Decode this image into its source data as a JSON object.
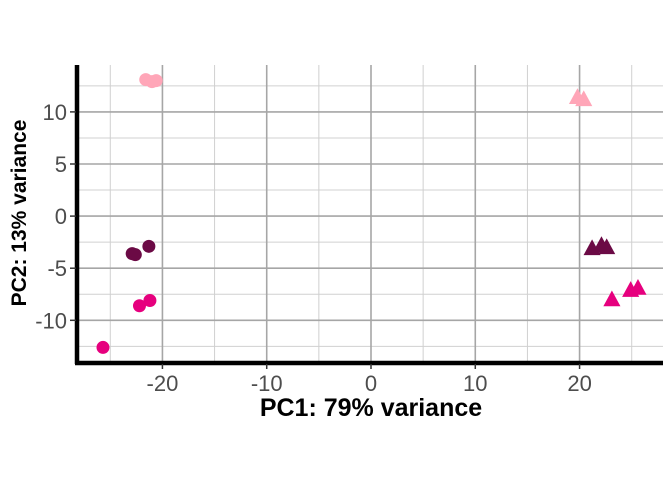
{
  "chart_data": {
    "type": "scatter",
    "title": "",
    "xlabel": "PC1: 79% variance",
    "ylabel": "PC2: 13% variance",
    "xlim": [
      -28,
      28
    ],
    "ylim": [
      -14,
      14.5
    ],
    "x_ticks": [
      -20,
      -10,
      0,
      10,
      20
    ],
    "x_tick_labels": [
      "-20",
      "-10",
      "0",
      "10",
      "20"
    ],
    "y_ticks": [
      -10,
      -5,
      0,
      5,
      10
    ],
    "y_tick_labels": [
      "-10",
      "-5",
      "0",
      "5",
      "10"
    ],
    "x_minor": [
      -25,
      -15,
      -5,
      5,
      15,
      25
    ],
    "y_minor": [
      -12.5,
      -7.5,
      -2.5,
      2.5,
      7.5,
      12.5
    ],
    "grid": true,
    "legend": "none",
    "colors": {
      "light_pink": "#ffa6b8",
      "dark_maroon": "#6b0a45",
      "magenta": "#e6007e",
      "grid_major": "#a6a6a6",
      "grid_minor": "#d0d0d0",
      "axis": "#000000"
    },
    "points": [
      {
        "x": -21.6,
        "y": 13.1,
        "shape": "circle",
        "color": "light_pink"
      },
      {
        "x": -21.0,
        "y": 12.9,
        "shape": "circle",
        "color": "light_pink"
      },
      {
        "x": -20.6,
        "y": 13.0,
        "shape": "circle",
        "color": "light_pink"
      },
      {
        "x": -22.9,
        "y": -3.6,
        "shape": "circle",
        "color": "dark_maroon"
      },
      {
        "x": -22.6,
        "y": -3.7,
        "shape": "circle",
        "color": "dark_maroon"
      },
      {
        "x": -21.3,
        "y": -2.9,
        "shape": "circle",
        "color": "dark_maroon"
      },
      {
        "x": -22.2,
        "y": -8.6,
        "shape": "circle",
        "color": "magenta"
      },
      {
        "x": -21.2,
        "y": -8.1,
        "shape": "circle",
        "color": "magenta"
      },
      {
        "x": -25.7,
        "y": -12.6,
        "shape": "circle",
        "color": "magenta"
      },
      {
        "x": 19.8,
        "y": 11.4,
        "shape": "triangle",
        "color": "light_pink"
      },
      {
        "x": 20.4,
        "y": 11.2,
        "shape": "triangle",
        "color": "light_pink"
      },
      {
        "x": 21.2,
        "y": -3.1,
        "shape": "triangle",
        "color": "dark_maroon"
      },
      {
        "x": 22.1,
        "y": -2.8,
        "shape": "triangle",
        "color": "dark_maroon"
      },
      {
        "x": 22.6,
        "y": -3.0,
        "shape": "triangle",
        "color": "dark_maroon"
      },
      {
        "x": 23.1,
        "y": -8.0,
        "shape": "triangle",
        "color": "magenta"
      },
      {
        "x": 24.9,
        "y": -7.1,
        "shape": "triangle",
        "color": "magenta"
      },
      {
        "x": 25.6,
        "y": -6.9,
        "shape": "triangle",
        "color": "magenta"
      }
    ]
  }
}
